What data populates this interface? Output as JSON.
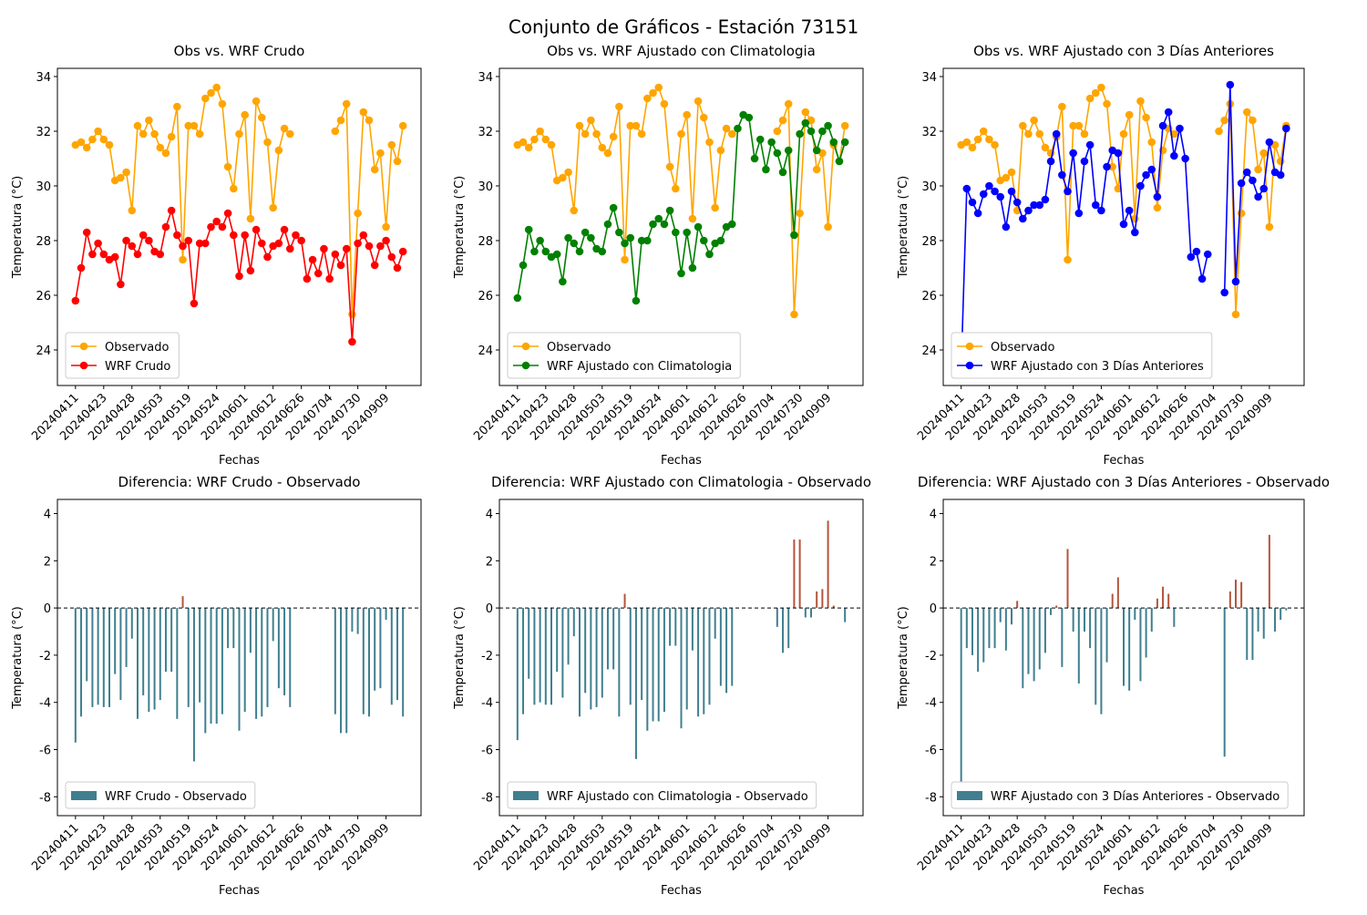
{
  "title": "Conjunto de Gráficos - Estación 73151",
  "chart_data": [
    {
      "type": "line",
      "title": "Obs vs. WRF Crudo",
      "xlabel": "Fechas",
      "ylabel": "Temperatura (°C)",
      "legend": "lower left",
      "categories": [
        "20240411",
        null,
        null,
        null,
        null,
        "20240423",
        null,
        null,
        null,
        null,
        "20240428",
        null,
        null,
        null,
        null,
        "20240503",
        null,
        null,
        null,
        null,
        "20240519",
        null,
        null,
        null,
        null,
        "20240524",
        null,
        null,
        null,
        null,
        "20240601",
        null,
        null,
        null,
        null,
        "20240612",
        null,
        null,
        null,
        null,
        "20240626",
        null,
        null,
        null,
        null,
        "20240704",
        null,
        null,
        null,
        null,
        "20240730",
        null,
        null,
        null,
        null,
        "20240909",
        null,
        null,
        null
      ],
      "series": [
        {
          "name": "Observado",
          "color": "#ffa500",
          "values": [
            31.5,
            31.6,
            31.4,
            31.7,
            32.0,
            31.7,
            31.5,
            30.2,
            30.3,
            30.5,
            29.1,
            32.2,
            31.9,
            32.4,
            31.9,
            31.4,
            31.2,
            31.8,
            32.9,
            27.3,
            32.2,
            32.2,
            31.9,
            33.2,
            33.4,
            33.6,
            33.0,
            30.7,
            29.9,
            31.9,
            32.6,
            28.8,
            33.1,
            32.5,
            31.6,
            29.2,
            31.3,
            32.1,
            31.9,
            null,
            null,
            null,
            null,
            null,
            null,
            null,
            32.0,
            32.4,
            33.0,
            25.3,
            29.0,
            32.7,
            32.4,
            30.6,
            31.2,
            28.5,
            31.5,
            30.9,
            32.2
          ]
        },
        {
          "name": "WRF Crudo",
          "color": "#ff0000",
          "values": [
            25.8,
            27.0,
            28.3,
            27.5,
            27.9,
            27.5,
            27.3,
            27.4,
            26.4,
            28.0,
            27.8,
            27.5,
            28.2,
            28.0,
            27.6,
            27.5,
            28.5,
            29.1,
            28.2,
            27.8,
            28.0,
            25.7,
            27.9,
            27.9,
            28.5,
            28.7,
            28.5,
            29.0,
            28.2,
            26.7,
            28.2,
            26.9,
            28.4,
            27.9,
            27.4,
            27.8,
            27.9,
            28.4,
            27.7,
            28.2,
            28.0,
            26.6,
            27.3,
            26.8,
            27.7,
            26.6,
            27.5,
            27.1,
            27.7,
            24.3,
            27.9,
            28.2,
            27.8,
            27.1,
            27.8,
            28.0,
            27.4,
            27.0,
            27.6
          ]
        }
      ],
      "ylim": [
        22.7,
        34.3
      ],
      "yticks": [
        24,
        26,
        28,
        30,
        32,
        34
      ]
    },
    {
      "type": "line",
      "title": "Obs vs. WRF Ajustado con Climatologia",
      "xlabel": "Fechas",
      "ylabel": "Temperatura (°C)",
      "legend": "lower left",
      "categories": [
        "20240411",
        null,
        null,
        null,
        null,
        "20240423",
        null,
        null,
        null,
        null,
        "20240428",
        null,
        null,
        null,
        null,
        "20240503",
        null,
        null,
        null,
        null,
        "20240519",
        null,
        null,
        null,
        null,
        "20240524",
        null,
        null,
        null,
        null,
        "20240601",
        null,
        null,
        null,
        null,
        "20240612",
        null,
        null,
        null,
        null,
        "20240626",
        null,
        null,
        null,
        null,
        "20240704",
        null,
        null,
        null,
        null,
        "20240730",
        null,
        null,
        null,
        null,
        "20240909",
        null,
        null,
        null
      ],
      "series": [
        {
          "name": "Observado",
          "color": "#ffa500",
          "values": [
            31.5,
            31.6,
            31.4,
            31.7,
            32.0,
            31.7,
            31.5,
            30.2,
            30.3,
            30.5,
            29.1,
            32.2,
            31.9,
            32.4,
            31.9,
            31.4,
            31.2,
            31.8,
            32.9,
            27.3,
            32.2,
            32.2,
            31.9,
            33.2,
            33.4,
            33.6,
            33.0,
            30.7,
            29.9,
            31.9,
            32.6,
            28.8,
            33.1,
            32.5,
            31.6,
            29.2,
            31.3,
            32.1,
            31.9,
            null,
            null,
            null,
            null,
            null,
            null,
            null,
            32.0,
            32.4,
            33.0,
            25.3,
            29.0,
            32.7,
            32.4,
            30.6,
            31.2,
            28.5,
            31.5,
            30.9,
            32.2
          ]
        },
        {
          "name": "WRF Ajustado con Climatologia",
          "color": "#008000",
          "values": [
            25.9,
            27.1,
            28.4,
            27.6,
            28.0,
            27.6,
            27.4,
            27.5,
            26.5,
            28.1,
            27.9,
            27.6,
            28.3,
            28.1,
            27.7,
            27.6,
            28.6,
            29.2,
            28.3,
            27.9,
            28.1,
            25.8,
            28.0,
            28.0,
            28.6,
            28.8,
            28.6,
            29.1,
            28.3,
            26.8,
            28.3,
            27.0,
            28.5,
            28.0,
            27.5,
            27.9,
            28.0,
            28.5,
            28.6,
            32.1,
            32.6,
            32.5,
            31.0,
            31.7,
            30.6,
            31.6,
            31.2,
            30.5,
            31.3,
            28.2,
            31.9,
            32.3,
            32.0,
            31.3,
            32.0,
            32.2,
            31.6,
            30.9,
            31.6
          ]
        }
      ],
      "ylim": [
        22.7,
        34.3
      ],
      "yticks": [
        24,
        26,
        28,
        30,
        32,
        34
      ]
    },
    {
      "type": "line",
      "title": "Obs vs. WRF Ajustado con 3 Días Anteriores",
      "xlabel": "Fechas",
      "ylabel": "Temperatura (°C)",
      "legend": "lower left",
      "categories": [
        "20240411",
        null,
        null,
        null,
        null,
        "20240423",
        null,
        null,
        null,
        null,
        "20240428",
        null,
        null,
        null,
        null,
        "20240503",
        null,
        null,
        null,
        null,
        "20240519",
        null,
        null,
        null,
        null,
        "20240524",
        null,
        null,
        null,
        null,
        "20240601",
        null,
        null,
        null,
        null,
        "20240612",
        null,
        null,
        null,
        null,
        "20240626",
        null,
        null,
        null,
        null,
        "20240704",
        null,
        null,
        null,
        null,
        "20240730",
        null,
        null,
        null,
        null,
        "20240909",
        null,
        null,
        null
      ],
      "series": [
        {
          "name": "Observado",
          "color": "#ffa500",
          "values": [
            31.5,
            31.6,
            31.4,
            31.7,
            32.0,
            31.7,
            31.5,
            30.2,
            30.3,
            30.5,
            29.1,
            32.2,
            31.9,
            32.4,
            31.9,
            31.4,
            31.2,
            31.8,
            32.9,
            27.3,
            32.2,
            32.2,
            31.9,
            33.2,
            33.4,
            33.6,
            33.0,
            30.7,
            29.9,
            31.9,
            32.6,
            28.8,
            33.1,
            32.5,
            31.6,
            29.2,
            31.3,
            32.1,
            31.9,
            null,
            null,
            null,
            null,
            null,
            null,
            null,
            32.0,
            32.4,
            33.0,
            25.3,
            29.0,
            32.7,
            32.4,
            30.6,
            31.2,
            28.5,
            31.5,
            30.9,
            32.2
          ]
        },
        {
          "name": "WRF Ajustado con 3 Días Anteriores",
          "color": "#0000ff",
          "values": [
            23.3,
            29.9,
            29.4,
            29.0,
            29.7,
            30.0,
            29.8,
            29.6,
            28.5,
            29.8,
            29.4,
            28.8,
            29.1,
            29.3,
            29.3,
            29.5,
            30.9,
            31.9,
            30.4,
            29.8,
            31.2,
            29.0,
            30.9,
            31.5,
            29.3,
            29.1,
            30.7,
            31.3,
            31.2,
            28.6,
            29.1,
            28.3,
            30.0,
            30.4,
            30.6,
            29.6,
            32.2,
            32.7,
            31.1,
            32.1,
            31.0,
            27.4,
            27.6,
            26.6,
            27.5,
            null,
            null,
            26.1,
            33.7,
            26.5,
            30.1,
            30.5,
            30.2,
            29.6,
            29.9,
            31.6,
            30.5,
            30.4,
            32.1
          ]
        }
      ],
      "ylim": [
        22.7,
        34.3
      ],
      "yticks": [
        24,
        26,
        28,
        30,
        32,
        34
      ]
    },
    {
      "type": "bar",
      "title": "Diferencia: WRF Crudo - Observado",
      "xlabel": "Fechas",
      "ylabel": "Temperatura (°C)",
      "legend": "lower left",
      "reference_line": 0,
      "categories": [
        "20240411",
        null,
        null,
        null,
        null,
        "20240423",
        null,
        null,
        null,
        null,
        "20240428",
        null,
        null,
        null,
        null,
        "20240503",
        null,
        null,
        null,
        null,
        "20240519",
        null,
        null,
        null,
        null,
        "20240524",
        null,
        null,
        null,
        null,
        "20240601",
        null,
        null,
        null,
        null,
        "20240612",
        null,
        null,
        null,
        null,
        "20240626",
        null,
        null,
        null,
        null,
        "20240704",
        null,
        null,
        null,
        null,
        "20240730",
        null,
        null,
        null,
        null,
        "20240909",
        null,
        null,
        null
      ],
      "series": [
        {
          "name": "WRF Crudo - Observado",
          "color": "#3f7f8f",
          "positive_color": "#b4543c",
          "values": [
            -5.7,
            -4.6,
            -3.1,
            -4.2,
            -4.1,
            -4.2,
            -4.2,
            -2.8,
            -3.9,
            -2.5,
            -1.3,
            -4.7,
            -3.7,
            -4.4,
            -4.3,
            -3.9,
            -2.7,
            -2.7,
            -4.7,
            0.5,
            -4.2,
            -6.5,
            -4.0,
            -5.3,
            -4.9,
            -4.9,
            -4.5,
            -1.7,
            -1.7,
            -5.2,
            -4.4,
            -1.9,
            -4.7,
            -4.6,
            -4.2,
            -1.4,
            -3.4,
            -3.7,
            -4.2,
            null,
            null,
            null,
            null,
            null,
            null,
            null,
            -4.5,
            -5.3,
            -5.3,
            -1.0,
            -1.1,
            -4.5,
            -4.6,
            -3.5,
            -3.4,
            -0.5,
            -4.1,
            -3.9,
            -4.6
          ]
        }
      ],
      "ylim": [
        -8.8,
        4.6
      ],
      "yticks": [
        -8,
        -6,
        -4,
        -2,
        0,
        2,
        4
      ]
    },
    {
      "type": "bar",
      "title": "Diferencia: WRF Ajustado con Climatologia - Observado",
      "xlabel": "Fechas",
      "ylabel": "Temperatura (°C)",
      "legend": "lower left",
      "reference_line": 0,
      "categories": [
        "20240411",
        null,
        null,
        null,
        null,
        "20240423",
        null,
        null,
        null,
        null,
        "20240428",
        null,
        null,
        null,
        null,
        "20240503",
        null,
        null,
        null,
        null,
        "20240519",
        null,
        null,
        null,
        null,
        "20240524",
        null,
        null,
        null,
        null,
        "20240601",
        null,
        null,
        null,
        null,
        "20240612",
        null,
        null,
        null,
        null,
        "20240626",
        null,
        null,
        null,
        null,
        "20240704",
        null,
        null,
        null,
        null,
        "20240730",
        null,
        null,
        null,
        null,
        "20240909",
        null,
        null,
        null
      ],
      "series": [
        {
          "name": "WRF Ajustado con Climatologia - Observado",
          "color": "#3f7f8f",
          "positive_color": "#b4543c",
          "values": [
            -5.6,
            -4.5,
            -3.0,
            -4.1,
            -4.0,
            -4.1,
            -4.1,
            -2.7,
            -3.8,
            -2.4,
            -1.2,
            -4.6,
            -3.6,
            -4.3,
            -4.2,
            -3.8,
            -2.6,
            -2.6,
            -4.6,
            0.6,
            -4.1,
            -6.4,
            -3.9,
            -5.2,
            -4.8,
            -4.8,
            -4.4,
            -1.6,
            -1.6,
            -5.1,
            -4.3,
            -1.8,
            -4.6,
            -4.5,
            -4.1,
            -1.3,
            -3.3,
            -3.6,
            -3.3,
            null,
            null,
            null,
            null,
            null,
            null,
            null,
            -0.8,
            -1.9,
            -1.7,
            2.9,
            2.9,
            -0.4,
            -0.4,
            0.7,
            0.8,
            3.7,
            0.1,
            0.0,
            -0.6
          ]
        }
      ],
      "ylim": [
        -8.8,
        4.6
      ],
      "yticks": [
        -8,
        -6,
        -4,
        -2,
        0,
        2,
        4
      ]
    },
    {
      "type": "bar",
      "title": "Diferencia: WRF Ajustado con 3 Días Anteriores - Observado",
      "xlabel": "Fechas",
      "ylabel": "Temperatura (°C)",
      "legend": "lower left",
      "reference_line": 0,
      "categories": [
        "20240411",
        null,
        null,
        null,
        null,
        "20240423",
        null,
        null,
        null,
        null,
        "20240428",
        null,
        null,
        null,
        null,
        "20240503",
        null,
        null,
        null,
        null,
        "20240519",
        null,
        null,
        null,
        null,
        "20240524",
        null,
        null,
        null,
        null,
        "20240601",
        null,
        null,
        null,
        null,
        "20240612",
        null,
        null,
        null,
        null,
        "20240626",
        null,
        null,
        null,
        null,
        "20240704",
        null,
        null,
        null,
        null,
        "20240730",
        null,
        null,
        null,
        null,
        "20240909",
        null,
        null,
        null
      ],
      "series": [
        {
          "name": "WRF Ajustado con 3 Días Anteriores - Observado",
          "color": "#3f7f8f",
          "positive_color": "#b4543c",
          "values": [
            -8.2,
            -1.7,
            -2.0,
            -2.7,
            -2.3,
            -1.7,
            -1.7,
            -0.6,
            -1.8,
            -0.7,
            0.3,
            -3.4,
            -2.8,
            -3.1,
            -2.6,
            -1.9,
            -0.3,
            0.1,
            -2.5,
            2.5,
            -1.0,
            -3.2,
            -1.0,
            -1.7,
            -4.1,
            -4.5,
            -2.3,
            0.6,
            1.3,
            -3.3,
            -3.5,
            -0.5,
            -3.1,
            -2.1,
            -1.0,
            0.4,
            0.9,
            0.6,
            -0.8,
            null,
            null,
            null,
            null,
            null,
            null,
            null,
            null,
            -6.3,
            0.7,
            1.2,
            1.1,
            -2.2,
            -2.2,
            -1.0,
            -1.3,
            3.1,
            -1.0,
            -0.5,
            -0.1
          ]
        }
      ],
      "ylim": [
        -8.8,
        4.6
      ],
      "yticks": [
        -8,
        -6,
        -4,
        -2,
        0,
        2,
        4
      ]
    }
  ]
}
